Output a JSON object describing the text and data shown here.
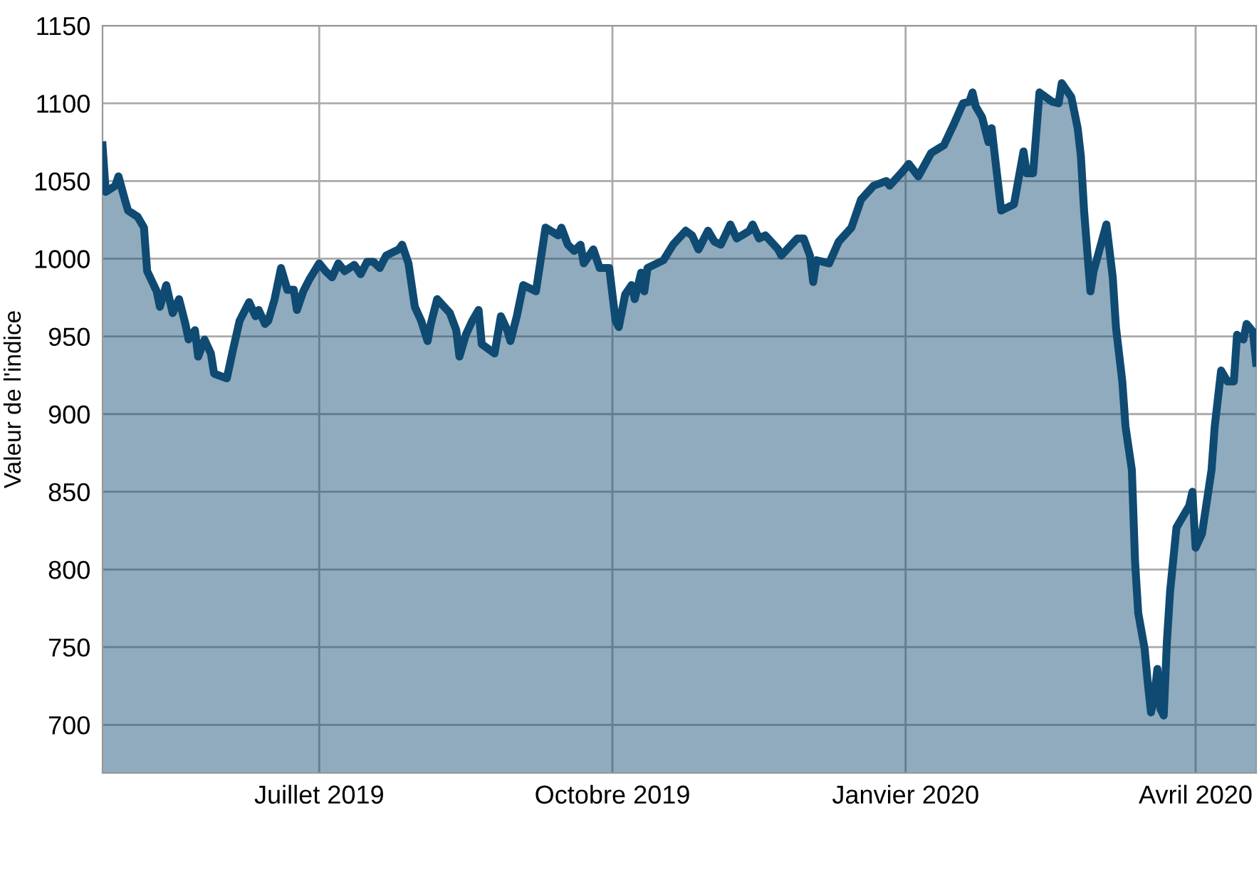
{
  "chart_data": {
    "type": "area",
    "ylabel": "Valeur de l'indice",
    "x": [
      "2019-04-24",
      "2019-04-25",
      "2019-04-28",
      "2019-04-29",
      "2019-05-01",
      "2019-05-02",
      "2019-05-05",
      "2019-05-07",
      "2019-05-08",
      "2019-05-11",
      "2019-05-12",
      "2019-05-14",
      "2019-05-16",
      "2019-05-18",
      "2019-05-20",
      "2019-05-21",
      "2019-05-23",
      "2019-05-24",
      "2019-05-26",
      "2019-05-28",
      "2019-05-29",
      "2019-06-02",
      "2019-06-04",
      "2019-06-06",
      "2019-06-09",
      "2019-06-11",
      "2019-06-12",
      "2019-06-14",
      "2019-06-15",
      "2019-06-17",
      "2019-06-19",
      "2019-06-21",
      "2019-06-23",
      "2019-06-24",
      "2019-06-26",
      "2019-06-28",
      "2019-07-01",
      "2019-07-03",
      "2019-07-05",
      "2019-07-07",
      "2019-07-09",
      "2019-07-12",
      "2019-07-14",
      "2019-07-16",
      "2019-07-18",
      "2019-07-20",
      "2019-07-22",
      "2019-07-26",
      "2019-07-27",
      "2019-07-29",
      "2019-07-31",
      "2019-08-02",
      "2019-08-04",
      "2019-08-05",
      "2019-08-07",
      "2019-08-11",
      "2019-08-13",
      "2019-08-14",
      "2019-08-16",
      "2019-08-18",
      "2019-08-20",
      "2019-08-21",
      "2019-08-25",
      "2019-08-27",
      "2019-08-29",
      "2019-08-30",
      "2019-09-01",
      "2019-09-03",
      "2019-09-07",
      "2019-09-10",
      "2019-09-14",
      "2019-09-15",
      "2019-09-17",
      "2019-09-19",
      "2019-09-21",
      "2019-09-22",
      "2019-09-25",
      "2019-09-27",
      "2019-09-30",
      "2019-10-02",
      "2019-10-03",
      "2019-10-05",
      "2019-10-07",
      "2019-10-08",
      "2019-10-10",
      "2019-10-11",
      "2019-10-12",
      "2019-10-17",
      "2019-10-20",
      "2019-10-24",
      "2019-10-26",
      "2019-10-28",
      "2019-10-31",
      "2019-11-02",
      "2019-11-04",
      "2019-11-07",
      "2019-11-09",
      "2019-11-13",
      "2019-11-14",
      "2019-11-16",
      "2019-11-18",
      "2019-11-22",
      "2019-11-23",
      "2019-11-28",
      "2019-11-30",
      "2019-12-02",
      "2019-12-03",
      "2019-12-04",
      "2019-12-08",
      "2019-12-11",
      "2019-12-15",
      "2019-12-18",
      "2019-12-22",
      "2019-12-26",
      "2019-12-27",
      "2019-12-31",
      "2020-01-02",
      "2020-01-05",
      "2020-01-09",
      "2020-01-13",
      "2020-01-16",
      "2020-01-19",
      "2020-01-21",
      "2020-01-22",
      "2020-01-23",
      "2020-01-25",
      "2020-01-27",
      "2020-01-28",
      "2020-01-31",
      "2020-02-04",
      "2020-02-07",
      "2020-02-08",
      "2020-02-10",
      "2020-02-12",
      "2020-02-16",
      "2020-02-18",
      "2020-02-19",
      "2020-02-22",
      "2020-02-24",
      "2020-02-25",
      "2020-02-26",
      "2020-02-28",
      "2020-02-29",
      "2020-03-04",
      "2020-03-06",
      "2020-03-07",
      "2020-03-09",
      "2020-03-10",
      "2020-03-11",
      "2020-03-12",
      "2020-03-13",
      "2020-03-14",
      "2020-03-16",
      "2020-03-17",
      "2020-03-18",
      "2020-03-19",
      "2020-03-20",
      "2020-03-21",
      "2020-03-22",
      "2020-03-23",
      "2020-03-24",
      "2020-03-26",
      "2020-03-30",
      "2020-03-31",
      "2020-04-01",
      "2020-04-03",
      "2020-04-06",
      "2020-04-07",
      "2020-04-09",
      "2020-04-11",
      "2020-04-13",
      "2020-04-14",
      "2020-04-16",
      "2020-04-17",
      "2020-04-19",
      "2020-04-20"
    ],
    "series": [
      {
        "color": "#0f4a72",
        "values": [
          1073,
          1043,
          1047,
          1053,
          1038,
          1031,
          1027,
          1020,
          992,
          979,
          969,
          983,
          965,
          974,
          958,
          948,
          954,
          937,
          948,
          939,
          926,
          923,
          942,
          960,
          972,
          963,
          967,
          958,
          960,
          974,
          994,
          980,
          980,
          967,
          979,
          987,
          997,
          992,
          988,
          997,
          992,
          996,
          990,
          998,
          998,
          994,
          1002,
          1006,
          1009,
          997,
          969,
          960,
          947,
          958,
          974,
          965,
          954,
          937,
          951,
          960,
          967,
          945,
          939,
          963,
          954,
          947,
          963,
          983,
          979,
          1020,
          1015,
          1020,
          1009,
          1005,
          1009,
          997,
          1006,
          994,
          994,
          960,
          956,
          977,
          983,
          974,
          991,
          979,
          994,
          999,
          1009,
          1018,
          1015,
          1006,
          1018,
          1011,
          1009,
          1022,
          1013,
          1018,
          1022,
          1013,
          1015,
          1006,
          1002,
          1013,
          1013,
          1002,
          985,
          999,
          997,
          1011,
          1020,
          1038,
          1047,
          1050,
          1047,
          1056,
          1061,
          1053,
          1068,
          1073,
          1086,
          1100,
          1101,
          1107,
          1098,
          1091,
          1075,
          1084,
          1031,
          1035,
          1069,
          1055,
          1055,
          1107,
          1101,
          1100,
          1113,
          1104,
          1084,
          1066,
          1031,
          979,
          992,
          1022,
          988,
          956,
          921,
          892,
          878,
          864,
          805,
          772,
          749,
          727,
          708,
          717,
          736,
          710,
          706,
          754,
          786,
          827,
          841,
          850,
          814,
          823,
          864,
          892,
          928,
          921,
          921,
          951,
          948,
          958,
          953,
          933
        ]
      }
    ],
    "xlim": [
      "2019-04-24",
      "2020-04-20"
    ],
    "xticks": [
      {
        "value": "2019-07-01",
        "label": "Juillet 2019"
      },
      {
        "value": "2019-10-01",
        "label": "Octobre 2019"
      },
      {
        "value": "2020-01-01",
        "label": "Janvier 2020"
      },
      {
        "value": "2020-04-01",
        "label": "Avril 2020"
      }
    ],
    "ylim": [
      669,
      1150
    ],
    "yticks": [
      700,
      750,
      800,
      850,
      900,
      950,
      1000,
      1050,
      1100,
      1150
    ],
    "grid": true,
    "legend": false,
    "line_style": "solid",
    "marker": "none"
  }
}
